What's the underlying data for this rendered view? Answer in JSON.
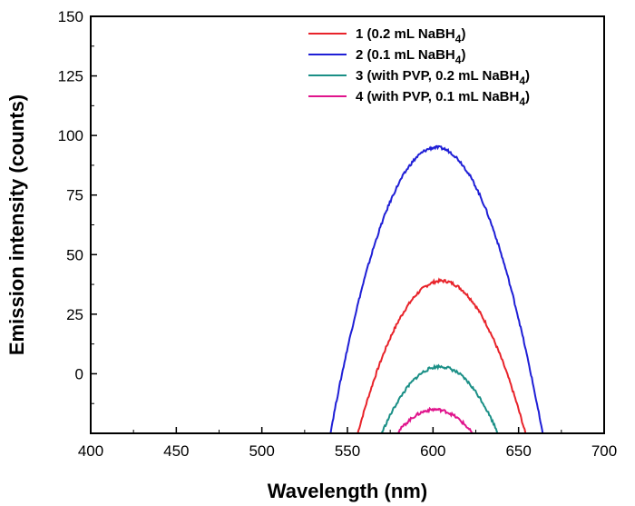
{
  "chart_data": {
    "type": "line",
    "title": "",
    "xlabel": "Wavelength (nm)",
    "ylabel": "Emission intensity (counts)",
    "xlim": [
      400,
      700
    ],
    "ylim": [
      -25,
      150
    ],
    "xticks": [
      400,
      450,
      500,
      550,
      600,
      650,
      700
    ],
    "yticks": [
      0,
      25,
      50,
      75,
      100,
      125,
      150
    ],
    "legend_position": "top-right",
    "series": [
      {
        "name": "1 (0.2 mL NaBH",
        "sub": "4",
        "tail": ")",
        "color": "#e8232a",
        "center": 605,
        "peak": 39,
        "halfwidth": 49
      },
      {
        "name": "2 (0.1 mL NaBH",
        "sub": "4",
        "tail": ")",
        "color": "#1f1fd6",
        "center": 602,
        "peak": 95,
        "halfwidth": 62
      },
      {
        "name": "3 (with PVP, 0.2 mL NaBH",
        "sub": "4",
        "tail": ")",
        "color": "#1a8f86",
        "center": 604,
        "peak": 3,
        "halfwidth": 34
      },
      {
        "name": "4 (with PVP, 0.1 mL NaBH",
        "sub": "4",
        "tail": ")",
        "color": "#e0148c",
        "center": 601,
        "peak": -15,
        "halfwidth": 22
      }
    ]
  }
}
